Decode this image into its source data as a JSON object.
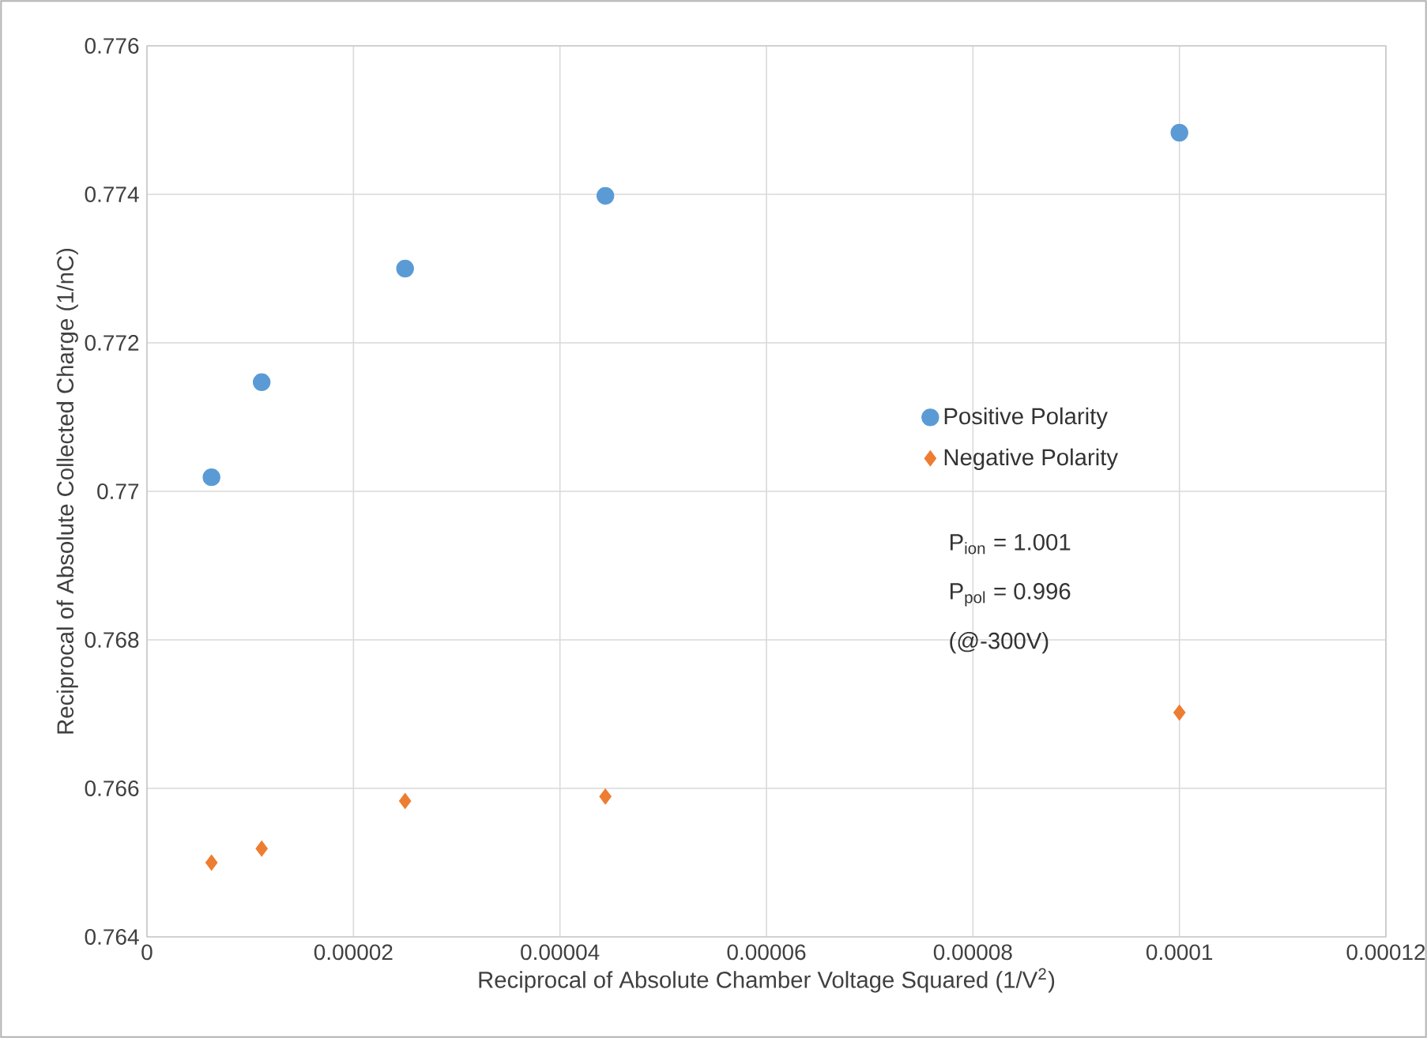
{
  "chart_data": {
    "type": "scatter",
    "xlabel": "Reciprocal of Absolute Chamber Voltage Squared (1/V$^{2}$)",
    "ylabel": "Reciprocal of Absolute Collected Charge (1/nC)",
    "x": [
      6.25e-06,
      1.111e-05,
      2.5e-05,
      4.44e-05,
      0.0001
    ],
    "series": [
      {
        "name": "Positive Polarity",
        "color": "#5b9bd5",
        "marker": "circle",
        "values": [
          0.77019,
          0.77147,
          0.773,
          0.77398,
          0.77483
        ]
      },
      {
        "name": "Negative Polarity",
        "color": "#ed7d31",
        "marker": "diamond",
        "values": [
          0.765,
          0.76519,
          0.76583,
          0.76589,
          0.76702
        ]
      }
    ],
    "xlim": [
      0,
      0.00012
    ],
    "xticks": [
      {
        "value": 0,
        "label": "0"
      },
      {
        "value": 2e-05,
        "label": "0.00002"
      },
      {
        "value": 4e-05,
        "label": "0.00004"
      },
      {
        "value": 6e-05,
        "label": "0.00006"
      },
      {
        "value": 8e-05,
        "label": "0.00008"
      },
      {
        "value": 0.0001,
        "label": "0.0001"
      },
      {
        "value": 0.00012,
        "label": "0.00012"
      }
    ],
    "ylim": [
      0.764,
      0.776
    ],
    "yticks": [
      0.764,
      0.766,
      0.768,
      0.77,
      0.772,
      0.774,
      0.776
    ],
    "grid": true,
    "legend": "right",
    "annotations": [
      "P$_{ion}$ = 1.001",
      "P$_{pol}$ = 0.996",
      "(@-300V)"
    ]
  }
}
